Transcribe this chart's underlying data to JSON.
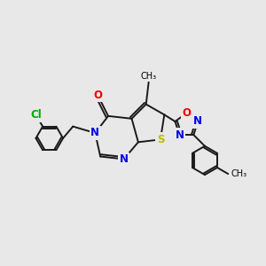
{
  "bg_color": "#e8e8e8",
  "bond_color": "#1a1a1a",
  "bond_width": 1.4,
  "atom_colors": {
    "N": "#0000ee",
    "O": "#ee0000",
    "S": "#bbbb00",
    "Cl": "#00aa00",
    "C": "#1a1a1a"
  },
  "font_size_atom": 8.5,
  "font_size_methyl": 7.0
}
